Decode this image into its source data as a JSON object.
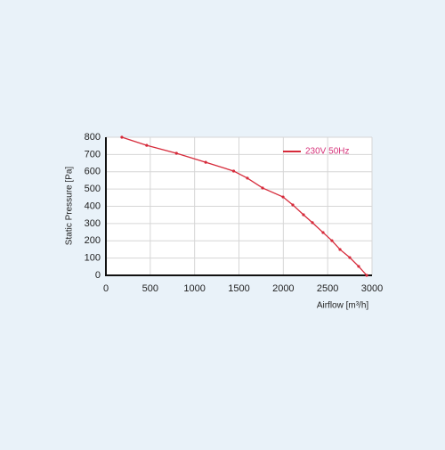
{
  "chart_data": {
    "type": "line",
    "x_label": "Airflow [m³/h]",
    "y_label": "Static Pressure [Pa]",
    "x": [
      180,
      460,
      795,
      1125,
      1440,
      1595,
      1766,
      1997,
      2107,
      2227,
      2328,
      2448,
      2548,
      2639,
      2749,
      2849,
      2940
    ],
    "series": [
      {
        "name": "230V 50Hz",
        "color": "#d62a3a",
        "values": [
          800,
          753,
          707,
          655,
          604,
          563,
          506,
          454,
          408,
          351,
          305,
          248,
          201,
          150,
          103,
          52,
          0
        ]
      }
    ],
    "xlim": [
      0,
      3000
    ],
    "xticks": [
      0,
      500,
      1000,
      1500,
      2000,
      2500,
      3000
    ],
    "ylim": [
      0,
      800
    ],
    "yticks": [
      0,
      100,
      200,
      300,
      400,
      500,
      600,
      700,
      800
    ],
    "grid": true,
    "legend": "upper right",
    "legend_text_color": "#d6337a"
  }
}
